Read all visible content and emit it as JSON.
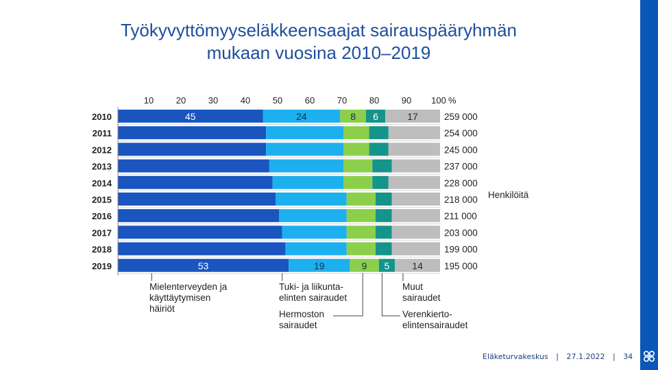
{
  "page": {
    "title_line1": "Työkyvyttömyyseläkkeensaajat sairauspääryhmän",
    "title_line2": "mukaan vuosina 2010–2019"
  },
  "footer": {
    "org": "Eläketurvakeskus",
    "date": "27.1.2022",
    "page_number": "34",
    "separator": "|"
  },
  "colors": {
    "mental": "#1a55c0",
    "musculoskeletal": "#1cb0ee",
    "nervous": "#8ccf4a",
    "circulatory": "#14948a",
    "other": "#bdbdbd",
    "accent": "#0b57b8",
    "title": "#1f4e9c"
  },
  "chart_data": {
    "type": "bar",
    "orientation": "horizontal",
    "stacked": true,
    "normalized": true,
    "title": "Työkyvyttömyyseläkkeensaajat sairauspääryhmän mukaan vuosina 2010–2019",
    "xlim": [
      0,
      100
    ],
    "x_ticks": [
      "10",
      "20",
      "30",
      "40",
      "50",
      "60",
      "70",
      "80",
      "90",
      "100"
    ],
    "x_unit": "%",
    "categories": [
      "2010",
      "2011",
      "2012",
      "2013",
      "2014",
      "2015",
      "2016",
      "2017",
      "2018",
      "2019"
    ],
    "totals": [
      "259 000",
      "254 000",
      "245 000",
      "237 000",
      "228 000",
      "218 000",
      "211 000",
      "203 000",
      "199 000",
      "195 000"
    ],
    "totals_label": "Henkilöitä",
    "series": [
      {
        "name": "Mielenterveyden ja käyttäytymisen häiriöt",
        "key": "mental",
        "values": [
          45,
          46,
          46,
          47,
          48,
          49,
          50,
          51,
          52,
          53
        ]
      },
      {
        "name": "Tuki- ja liikuntaelinten sairaudet",
        "key": "musculoskeletal",
        "values": [
          24,
          24,
          24,
          23,
          22,
          22,
          21,
          20,
          19,
          19
        ]
      },
      {
        "name": "Hermoston sairaudet",
        "key": "nervous",
        "values": [
          8,
          8,
          8,
          9,
          9,
          9,
          9,
          9,
          9,
          9
        ]
      },
      {
        "name": "Verenkiertoelintensairaudet",
        "key": "circulatory",
        "values": [
          6,
          6,
          6,
          6,
          5,
          5,
          5,
          5,
          5,
          5
        ]
      },
      {
        "name": "Muut sairaudet",
        "key": "other",
        "values": [
          17,
          16,
          16,
          15,
          16,
          15,
          15,
          15,
          15,
          14
        ]
      }
    ],
    "data_labels": {
      "2010": [
        "45",
        "24",
        "8",
        "6",
        "17"
      ],
      "2019": [
        "53",
        "19",
        "9",
        "5",
        "14"
      ]
    },
    "annotations": [
      {
        "key": "mental",
        "lines": [
          "Mielenterveyden ja",
          "käyttäytymisen",
          "häiriöt"
        ]
      },
      {
        "key": "musculoskeletal",
        "lines": [
          "Tuki- ja liikunta-",
          "elinten sairaudet"
        ]
      },
      {
        "key": "nervous",
        "lines": [
          "Hermoston",
          "sairaudet"
        ]
      },
      {
        "key": "other",
        "lines": [
          "Muut",
          "sairaudet"
        ]
      },
      {
        "key": "circulatory",
        "lines": [
          "Verenkierto-",
          "elintensairaudet"
        ]
      }
    ]
  }
}
